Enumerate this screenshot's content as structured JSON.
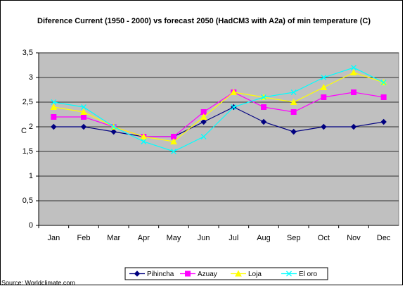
{
  "chart_data": {
    "type": "line",
    "title": "Diference Current (1950 - 2000) vs forecast 2050 (HadCM3 with A2a) of min temperature (C)",
    "y_label": "C",
    "source": "Source: Worldclimate.com",
    "categories": [
      "Jan",
      "Feb",
      "Mar",
      "Apr",
      "May",
      "Jun",
      "Jul",
      "Aug",
      "Sep",
      "Oct",
      "Nov",
      "Dec"
    ],
    "series": [
      {
        "name": "Pihincha",
        "color": "#000080",
        "marker": "diamond",
        "values": [
          2.0,
          2.0,
          1.9,
          1.8,
          1.8,
          2.1,
          2.4,
          2.1,
          1.9,
          2.0,
          2.0,
          2.1
        ]
      },
      {
        "name": "Azuay",
        "color": "#ff00ff",
        "marker": "square",
        "values": [
          2.2,
          2.2,
          2.0,
          1.8,
          1.8,
          2.3,
          2.7,
          2.4,
          2.3,
          2.6,
          2.7,
          2.6
        ]
      },
      {
        "name": "Loja",
        "color": "#ffff00",
        "marker": "triangle",
        "values": [
          2.4,
          2.3,
          2.0,
          1.8,
          1.7,
          2.2,
          2.7,
          2.6,
          2.5,
          2.8,
          3.1,
          2.9
        ]
      },
      {
        "name": "El oro",
        "color": "#00ffff",
        "marker": "x",
        "values": [
          2.5,
          2.4,
          2.0,
          1.7,
          1.5,
          1.8,
          2.4,
          2.6,
          2.7,
          3.0,
          3.2,
          2.9
        ]
      }
    ],
    "ylim": [
      0,
      3.5
    ],
    "yticks": [
      0,
      {
        "value": 0.5,
        "label": "0,5"
      },
      1,
      {
        "value": 1.5,
        "label": "1,5"
      },
      2,
      {
        "value": 2.5,
        "label": "2,5"
      },
      3,
      {
        "value": 3.5,
        "label": "3,5"
      }
    ],
    "grid": true,
    "plot_background": "#c0c0c0",
    "legend": "bottom"
  }
}
